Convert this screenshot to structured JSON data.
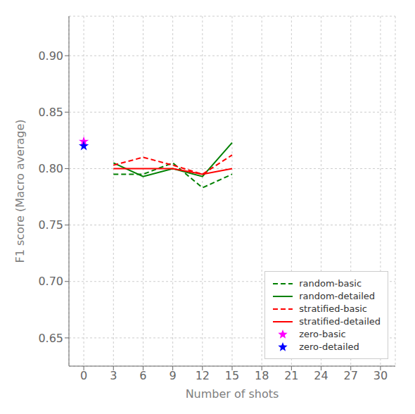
{
  "chart_data": {
    "type": "line",
    "xlabel": "Number of shots",
    "ylabel": "F1 score (Macro average)",
    "x": [
      3,
      6,
      9,
      12,
      15
    ],
    "series": [
      {
        "name": "random-basic",
        "color": "#008000",
        "line_style": "dashed",
        "values": [
          0.795,
          0.795,
          0.805,
          0.783,
          0.795
        ]
      },
      {
        "name": "random-detailed",
        "color": "#008000",
        "line_style": "solid",
        "values": [
          0.805,
          0.793,
          0.8,
          0.793,
          0.823
        ]
      },
      {
        "name": "stratified-basic",
        "color": "#FF0000",
        "line_style": "dashed",
        "values": [
          0.803,
          0.81,
          0.803,
          0.795,
          0.812
        ]
      },
      {
        "name": "stratified-detailed",
        "color": "#FF0000",
        "line_style": "solid",
        "values": [
          0.8,
          0.8,
          0.8,
          0.795,
          0.8
        ]
      },
      {
        "name": "zero-basic",
        "type": "scatter",
        "marker": "star",
        "color": "#FF00FF",
        "x": [
          0
        ],
        "values": [
          0.824
        ]
      },
      {
        "name": "zero-detailed",
        "type": "scatter",
        "marker": "star",
        "color": "#0000FF",
        "x": [
          0
        ],
        "values": [
          0.82
        ]
      }
    ],
    "xlim": [
      -1.5,
      31.5
    ],
    "ylim": [
      0.625,
      0.935
    ],
    "xticks": [
      0,
      3,
      6,
      9,
      12,
      15,
      18,
      21,
      24,
      27,
      30
    ],
    "yticks": [
      0.65,
      {
        "value": 0.7,
        "label": "0.70"
      },
      0.75,
      {
        "value": 0.8,
        "label": "0.80"
      },
      0.85,
      {
        "value": 0.9,
        "label": "0.90"
      }
    ],
    "grid": true,
    "legend": "lower right"
  }
}
